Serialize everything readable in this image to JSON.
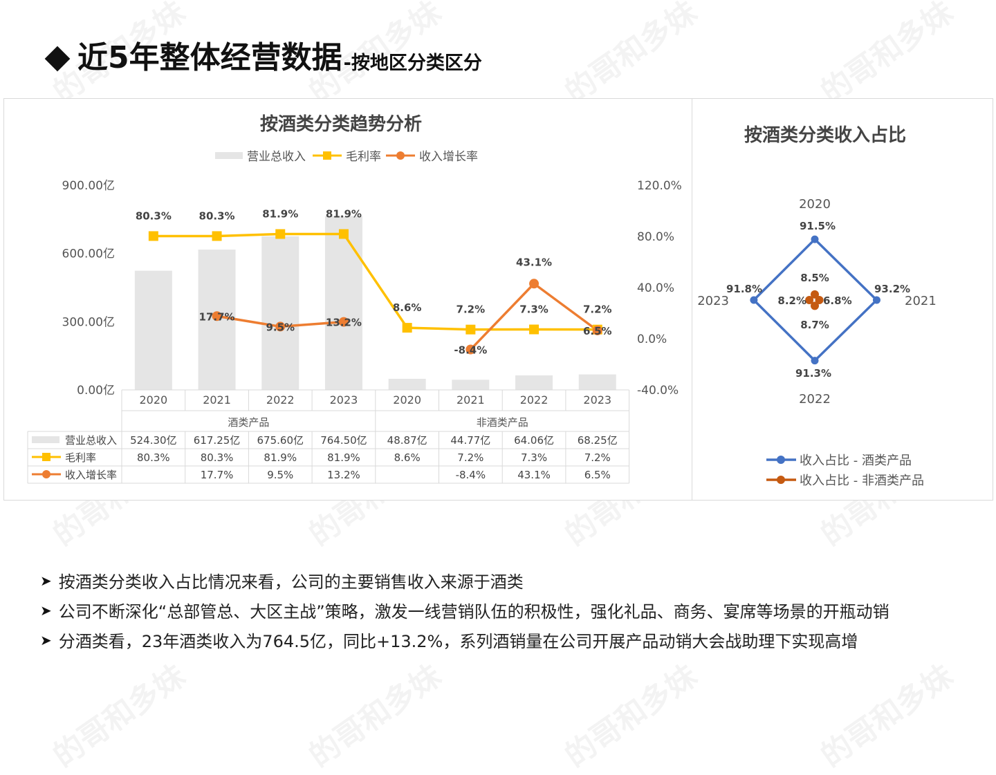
{
  "slide": {
    "title_main": "近5年整体经营数据",
    "title_sub": "-按地区分类区分"
  },
  "watermark": "的哥和多妹",
  "left_chart": {
    "title": "按酒类分类趋势分析",
    "legend": [
      "营业总收入",
      "毛利率",
      "收入增长率"
    ]
  },
  "right_chart": {
    "title": "按酒类分类收入占比",
    "legend": [
      "收入占比 - 酒类产品",
      "收入占比 - 非酒类产品"
    ]
  },
  "chart_data": [
    {
      "type": "bar",
      "title": "按酒类分类趋势分析",
      "group_labels": [
        "酒类产品",
        "非酒类产品"
      ],
      "categories": [
        "2020",
        "2021",
        "2022",
        "2023",
        "2020",
        "2021",
        "2022",
        "2023"
      ],
      "series": [
        {
          "name": "营业总收入",
          "kind": "bar",
          "axis": "left",
          "color": "#e5e5e5",
          "values": [
            524.3,
            617.25,
            675.6,
            764.5,
            48.87,
            44.77,
            64.06,
            68.25
          ],
          "table_labels": [
            "524.30亿",
            "617.25亿",
            "675.60亿",
            "764.50亿",
            "48.87亿",
            "44.77亿",
            "64.06亿",
            "68.25亿"
          ]
        },
        {
          "name": "毛利率",
          "kind": "line",
          "axis": "right",
          "color": "#ffc000",
          "values": [
            80.3,
            80.3,
            81.9,
            81.9,
            8.6,
            7.2,
            7.3,
            7.2
          ],
          "labels": [
            "80.3%",
            "80.3%",
            "81.9%",
            "81.9%",
            "8.6%",
            "7.2%",
            "7.3%",
            "7.2%"
          ]
        },
        {
          "name": "收入增长率",
          "kind": "line",
          "axis": "right",
          "color": "#ed7d31",
          "values": [
            null,
            17.7,
            9.5,
            13.2,
            null,
            -8.4,
            43.1,
            6.5
          ],
          "labels": [
            "",
            "17.7%",
            "9.5%",
            "13.2%",
            "",
            "-8.4%",
            "43.1%",
            "6.5%"
          ]
        }
      ],
      "y_left": {
        "ticks": [
          "900.00亿",
          "600.00亿",
          "300.00亿",
          "0.00亿"
        ],
        "range": [
          0,
          900
        ]
      },
      "y_right": {
        "ticks": [
          "120.0%",
          "80.0%",
          "40.0%",
          "0.0%",
          "-40.0%"
        ],
        "range": [
          -40,
          120
        ]
      }
    },
    {
      "type": "radar",
      "title": "按酒类分类收入占比",
      "categories": [
        "2020",
        "2021",
        "2022",
        "2023"
      ],
      "series": [
        {
          "name": "收入占比 - 酒类产品",
          "color": "#4472c4",
          "values": [
            91.5,
            93.2,
            91.3,
            91.8
          ],
          "labels": [
            "91.5%",
            "93.2%",
            "91.3%",
            "91.8%"
          ]
        },
        {
          "name": "收入占比 - 非酒类产品",
          "color": "#c55a11",
          "values": [
            8.5,
            6.8,
            8.7,
            8.2
          ],
          "labels": [
            "8.5%",
            "6.8%",
            "8.7%",
            "8.2%"
          ]
        }
      ]
    }
  ],
  "bullets": [
    "按酒类分类收入占比情况来看，公司的主要销售收入来源于酒类",
    "公司不断深化“总部管总、大区主战”策略，激发一线营销队伍的积极性，强化礼品、商务、宴席等场景的开瓶动销",
    "分酒类看，23年酒类收入为764.5亿，同比+13.2%，系列酒销量在公司开展产品动销大会战助理下实现高增"
  ]
}
